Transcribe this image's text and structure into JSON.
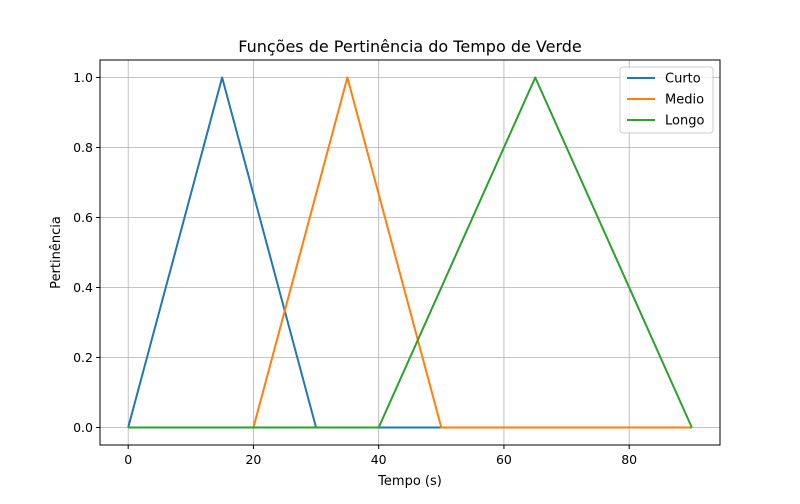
{
  "chart_data": {
    "type": "line",
    "title": "Funções de Pertinência do Tempo de Verde",
    "xlabel": "Tempo (s)",
    "ylabel": "Pertinência",
    "xlim": [
      -4.5,
      94.5
    ],
    "ylim": [
      -0.05,
      1.05
    ],
    "xticks": [
      0,
      20,
      40,
      60,
      80
    ],
    "yticks": [
      0.0,
      0.2,
      0.4,
      0.6,
      0.8,
      1.0
    ],
    "xtick_labels": [
      "0",
      "20",
      "40",
      "60",
      "80"
    ],
    "ytick_labels": [
      "0.0",
      "0.2",
      "0.4",
      "0.6",
      "0.8",
      "1.0"
    ],
    "grid": true,
    "legend_position": "top-right",
    "series": [
      {
        "name": "Curto",
        "color": "#1f77b4",
        "x": [
          0,
          15,
          30,
          90
        ],
        "y": [
          0,
          1,
          0,
          0
        ]
      },
      {
        "name": "Medio",
        "color": "#ff7f0e",
        "x": [
          0,
          20,
          35,
          50,
          90
        ],
        "y": [
          0,
          0,
          1,
          0,
          0
        ]
      },
      {
        "name": "Longo",
        "color": "#2ca02c",
        "x": [
          0,
          40,
          65,
          90
        ],
        "y": [
          0,
          0,
          1,
          0
        ]
      }
    ]
  }
}
